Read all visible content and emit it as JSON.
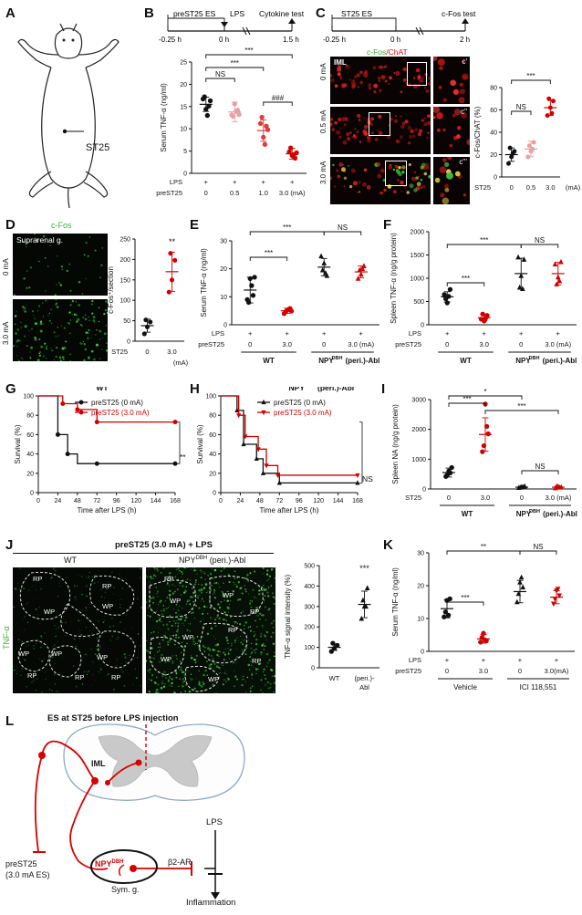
{
  "figure": {
    "panel_labels": [
      "A",
      "B",
      "C",
      "D",
      "E",
      "F",
      "G",
      "H",
      "I",
      "J",
      "K",
      "L"
    ],
    "A": {
      "site_label": "ST25"
    },
    "B": {
      "timeline": {
        "stim": "preST25 ES",
        "lps": "LPS",
        "end": "Cytokine test",
        "t0": "-0.25 h",
        "t1": "0 h",
        "t2": "1.5 h"
      },
      "ylabel": "Serum TNF-α (ng/ml)",
      "sig": [
        "NS",
        "***",
        "***",
        "###"
      ],
      "row_labels": [
        "LPS",
        "preST25"
      ],
      "lps": [
        "+",
        "+",
        "+",
        "+"
      ],
      "doses": [
        "0",
        "0.5",
        "1.0",
        "3.0 (mA)"
      ],
      "yticks": [
        "0",
        "5",
        "10",
        "15",
        "20",
        "25"
      ]
    },
    "C": {
      "timeline": {
        "stim": "ST25 ES",
        "end": "c-Fos test",
        "t0": "-0.25 h",
        "t1": "0 h",
        "t2": "2 h"
      },
      "stain_green": "c-Fos",
      "stain_red": "/ChAT",
      "iml": "IML",
      "rows": [
        "0 mA",
        "0.5 mA",
        "3.0 mA"
      ],
      "insets": [
        "c'",
        "c''",
        "c'''"
      ],
      "ylabel": "c-Fos/ChAT (%)",
      "sig": [
        "NS",
        "***"
      ],
      "xrow_label": "ST25",
      "x": [
        "0",
        "0.5",
        "3.0",
        "(mA)"
      ],
      "yticks": [
        "0",
        "20",
        "40",
        "60",
        "80"
      ]
    },
    "D": {
      "stain": "c-Fos",
      "region": "Suprarenal g.",
      "rows": [
        "0 mA",
        "3.0 mA"
      ],
      "ylabel": "c-Fos⁺/section",
      "sig": "**",
      "xrow_label": "ST25",
      "x": [
        "0",
        "3.0",
        "(mA)"
      ],
      "yticks": [
        "0",
        "50",
        "100",
        "150",
        "200",
        "250"
      ]
    },
    "E": {
      "ylabel": "Serum TNF-α (ng/ml)",
      "sig": [
        "***",
        "NS",
        "***"
      ],
      "row_labels": [
        "LPS",
        "preST25"
      ],
      "lps": [
        "+",
        "+",
        "+",
        "+"
      ],
      "doses": [
        "0",
        "3.0",
        "0",
        "3.0 (mA)"
      ],
      "groups": [
        "WT",
        "NPY",
        "DBH",
        " (peri.)-Abl"
      ],
      "yticks": [
        "0",
        "10",
        "20",
        "30"
      ]
    },
    "F": {
      "ylabel": "Spleen TNF-α (ng/g protein)",
      "sig": [
        "***",
        "NS",
        "***"
      ],
      "row_labels": [
        "LPS",
        "preST25"
      ],
      "lps": [
        "+",
        "+",
        "+",
        "+"
      ],
      "doses": [
        "0",
        "3.0",
        "0",
        "3.0 (mA)"
      ],
      "groups": [
        "WT",
        "NPY",
        "DBH",
        " (peri.)-Abl"
      ],
      "yticks": [
        "0",
        "500",
        "1000",
        "1500",
        "2000"
      ]
    },
    "G": {
      "title": "WT",
      "legend": [
        "preST25 (0 mA)",
        "preST25 (3.0 mA)"
      ],
      "sig": "**",
      "ylabel": "Survival (%)",
      "xlabel": "Time after LPS (h)",
      "xticks": [
        "0",
        "24",
        "48",
        "72",
        "96",
        "120",
        "144",
        "168"
      ],
      "yticks": [
        "0",
        "20",
        "40",
        "60",
        "80",
        "100"
      ]
    },
    "H": {
      "title_a": "NPY",
      "title_sup": "DBH",
      "title_b": " (peri.)-Abl",
      "legend": [
        "preST25 (0 mA)",
        "preST25 (3.0 mA)"
      ],
      "sig": "NS",
      "ylabel": "Survival (%)",
      "xlabel": "Time after LPS (h)",
      "xticks": [
        "0",
        "24",
        "48",
        "72",
        "96",
        "120",
        "144",
        "168"
      ],
      "yticks": [
        "0",
        "20",
        "40",
        "60",
        "80",
        "100"
      ]
    },
    "I": {
      "ylabel": "Spleen NA (ng/g protein)",
      "sig": [
        "*",
        "***",
        "***",
        "NS"
      ],
      "xrow_label": "ST25",
      "x": [
        "0",
        "3.0",
        "0",
        "3.0 (mA)"
      ],
      "groups": [
        "WT",
        "NPY",
        "DBH",
        " (peri.)-Abl"
      ],
      "yticks": [
        "0",
        "1000",
        "2000",
        "3000"
      ]
    },
    "J": {
      "header": "preST25 (3.0 mA) + LPS",
      "col_wt": "WT",
      "col_abl_a": "NPY",
      "col_abl_sup": "DBH",
      "col_abl_b": " (peri.)-Abl",
      "side": "TNF-α",
      "regions": [
        "RP",
        "WP"
      ],
      "ylabel": "TNF-α signal intensity (%)",
      "sig": "***",
      "x": [
        "WT",
        "(peri.)-",
        "Abl"
      ],
      "yticks": [
        "0",
        "100",
        "200",
        "300",
        "400",
        "500"
      ]
    },
    "K": {
      "ylabel": "Serum TNF-α (ng/ml)",
      "sig": [
        "***",
        "**",
        "NS"
      ],
      "row_labels": [
        "LPS",
        "preST25"
      ],
      "lps": [
        "+",
        "+",
        "+",
        "+"
      ],
      "doses": [
        "0",
        "3.0",
        "0",
        "3.0(mA)"
      ],
      "groups": [
        "Vehicle",
        "ICI 118,551"
      ],
      "yticks": [
        "0",
        "10",
        "20",
        "30"
      ]
    },
    "L": {
      "top": "ES at ST25 before LPS injection",
      "iml": "IML",
      "pre_a": "preST25",
      "pre_b": "(3.0 mA ES)",
      "npy": "NPY",
      "npy_sup": "DBH",
      "beta": "β2-AR",
      "symg": "Sym. g.",
      "lps": "LPS",
      "inflam": "Inflammation"
    }
  },
  "chart_data": [
    {
      "panel": "B",
      "type": "scatter",
      "ylabel": "Serum TNF-α (ng/ml)",
      "ylim": [
        0,
        25
      ],
      "categories": [
        "0",
        "0.5",
        "1.0",
        "3.0"
      ],
      "colors": [
        "#111111",
        "#e8a0a0",
        "#e03c3c",
        "#d10000"
      ],
      "means": [
        15.5,
        13.8,
        9.6,
        4.4
      ],
      "sd": [
        1.6,
        2.2,
        2.4,
        1.2
      ],
      "points": [
        [
          16.7,
          14.4,
          15.1,
          17.2,
          13.0,
          16.3
        ],
        [
          13.1,
          15.6,
          14.2,
          12.8,
          13.9,
          13.2
        ],
        [
          11.2,
          8.1,
          10.6,
          12.6,
          6.5,
          9.8
        ],
        [
          4.8,
          4.0,
          3.4,
          5.7,
          4.2,
          4.6
        ]
      ]
    },
    {
      "panel": "C",
      "type": "scatter",
      "ylabel": "c-Fos/ChAT (%)",
      "ylim": [
        0,
        80
      ],
      "categories": [
        "0",
        "0.5",
        "3.0"
      ],
      "colors": [
        "#111111",
        "#e8a0a0",
        "#d10000"
      ],
      "means": [
        20,
        25,
        62
      ],
      "sd": [
        6,
        7,
        7
      ],
      "points": [
        [
          12,
          18,
          23,
          26,
          21
        ],
        [
          18,
          23,
          31,
          28,
          25
        ],
        [
          55,
          62,
          68,
          70,
          57
        ]
      ]
    },
    {
      "panel": "D",
      "type": "scatter",
      "ylabel": "c-Fos⁺/section",
      "ylim": [
        0,
        250
      ],
      "categories": [
        "0",
        "3.0"
      ],
      "colors": [
        "#111111",
        "#d10000"
      ],
      "means": [
        38,
        170
      ],
      "sd": [
        16,
        48
      ],
      "points": [
        [
          18,
          35,
          47,
          52
        ],
        [
          120,
          150,
          198,
          215
        ]
      ]
    },
    {
      "panel": "E",
      "type": "scatter",
      "ylabel": "Serum TNF-α (ng/ml)",
      "ylim": [
        0,
        30
      ],
      "categories": [
        "WT 0",
        "WT 3.0",
        "Abl 0",
        "Abl 3.0"
      ],
      "colors": [
        "#111111",
        "#d10000",
        "#111111",
        "#d10000"
      ],
      "markers": [
        "circle",
        "circle",
        "triangle",
        "triangle"
      ],
      "means": [
        12.4,
        5.0,
        20.6,
        18.9
      ],
      "sd": [
        4.6,
        0.9,
        3.1,
        2.1
      ],
      "points": [
        [
          9,
          16.5,
          10.5,
          8,
          14,
          17
        ],
        [
          4.0,
          5.2,
          5.8,
          4.6,
          5.5,
          4.9
        ],
        [
          24.5,
          22,
          17.5,
          19.5,
          18.5
        ],
        [
          16.5,
          18,
          21,
          19.5,
          20
        ]
      ]
    },
    {
      "panel": "F",
      "type": "scatter",
      "ylabel": "Spleen TNF-α (ng/g protein)",
      "ylim": [
        0,
        2000
      ],
      "categories": [
        "WT 0",
        "WT 3.0",
        "Abl 0",
        "Abl 3.0"
      ],
      "colors": [
        "#111111",
        "#d10000",
        "#111111",
        "#d10000"
      ],
      "markers": [
        "circle",
        "circle",
        "triangle",
        "triangle"
      ],
      "means": [
        600,
        150,
        1100,
        1100
      ],
      "sd": [
        110,
        60,
        330,
        240
      ],
      "points": [
        [
          650,
          470,
          760,
          560,
          610
        ],
        [
          120,
          80,
          200,
          230,
          140
        ],
        [
          1450,
          1050,
          1400,
          800,
          770
        ],
        [
          1300,
          1020,
          1350,
          870,
          940
        ]
      ]
    },
    {
      "panel": "G",
      "type": "line",
      "xlabel": "Time after LPS (h)",
      "ylabel": "Survival (%)",
      "xlim": [
        0,
        168
      ],
      "ylim": [
        0,
        100
      ],
      "series": [
        {
          "name": "preST25 (0 mA)",
          "color": "#111111",
          "x": [
            0,
            24,
            24,
            36,
            36,
            48,
            48,
            72,
            72,
            168
          ],
          "y": [
            100,
            100,
            60,
            60,
            40,
            40,
            30,
            30,
            30,
            30
          ],
          "marks": [
            [
              24,
              60
            ],
            [
              36,
              40
            ],
            [
              72,
              30
            ],
            [
              168,
              30
            ]
          ]
        },
        {
          "name": "preST25 (3.0 mA)",
          "color": "#d10000",
          "x": [
            0,
            30,
            30,
            48,
            48,
            72,
            72,
            168
          ],
          "y": [
            100,
            100,
            92,
            92,
            86,
            86,
            73,
            73
          ],
          "marks": [
            [
              30,
              92
            ],
            [
              48,
              86
            ],
            [
              72,
              73
            ],
            [
              168,
              73
            ]
          ]
        }
      ]
    },
    {
      "panel": "H",
      "type": "line",
      "xlabel": "Time after LPS (h)",
      "ylabel": "Survival (%)",
      "xlim": [
        0,
        168
      ],
      "ylim": [
        0,
        100
      ],
      "series": [
        {
          "name": "preST25 (0 mA)",
          "color": "#111111",
          "x": [
            0,
            20,
            20,
            28,
            28,
            44,
            44,
            52,
            52,
            72,
            72,
            168
          ],
          "y": [
            100,
            100,
            85,
            85,
            50,
            50,
            35,
            35,
            20,
            20,
            10,
            10
          ],
          "marks": [
            [
              20,
              85
            ],
            [
              28,
              50
            ],
            [
              44,
              35
            ],
            [
              52,
              20
            ],
            [
              72,
              10
            ],
            [
              168,
              10
            ]
          ]
        },
        {
          "name": "preST25 (3.0 mA)",
          "color": "#d10000",
          "x": [
            0,
            22,
            22,
            30,
            30,
            46,
            46,
            56,
            56,
            70,
            70,
            168
          ],
          "y": [
            100,
            100,
            80,
            80,
            58,
            58,
            45,
            45,
            28,
            28,
            18,
            18
          ],
          "marks": [
            [
              22,
              80
            ],
            [
              30,
              58
            ],
            [
              46,
              45
            ],
            [
              56,
              28
            ],
            [
              70,
              18
            ],
            [
              168,
              18
            ]
          ]
        }
      ]
    },
    {
      "panel": "I",
      "type": "scatter",
      "ylabel": "Spleen NA (ng/g protein)",
      "ylim": [
        0,
        3000
      ],
      "categories": [
        "WT 0",
        "WT 3.0",
        "Abl 0",
        "Abl 3.0"
      ],
      "colors": [
        "#111111",
        "#d10000",
        "#111111",
        "#d10000"
      ],
      "markers": [
        "circle",
        "circle",
        "triangle",
        "triangle"
      ],
      "means": [
        550,
        1830,
        60,
        60
      ],
      "sd": [
        150,
        560,
        30,
        30
      ],
      "points": [
        [
          420,
          600,
          720,
          480,
          540
        ],
        [
          1250,
          2850,
          1850,
          1450,
          2100
        ],
        [
          40,
          70,
          90,
          50,
          60
        ],
        [
          30,
          80,
          60,
          90,
          50
        ]
      ]
    },
    {
      "panel": "J",
      "type": "scatter",
      "ylabel": "TNF-α signal intensity (%)",
      "ylim": [
        0,
        500
      ],
      "categories": [
        "WT",
        "(peri.)-Abl"
      ],
      "colors": [
        "#111111",
        "#111111"
      ],
      "markers": [
        "circle",
        "triangle"
      ],
      "means": [
        100,
        310
      ],
      "sd": [
        15,
        65
      ],
      "points": [
        [
          80,
          95,
          110,
          120
        ],
        [
          240,
          300,
          390,
          330,
          300
        ]
      ]
    },
    {
      "panel": "K",
      "type": "scatter",
      "ylabel": "Serum TNF-α (ng/ml)",
      "ylim": [
        0,
        30
      ],
      "categories": [
        "Vehicle 0",
        "Vehicle 3.0",
        "ICI 0",
        "ICI 3.0"
      ],
      "colors": [
        "#111111",
        "#d10000",
        "#111111",
        "#d10000"
      ],
      "markers": [
        "circle",
        "circle",
        "triangle",
        "triangle-down"
      ],
      "means": [
        13.0,
        3.8,
        18.2,
        16.5
      ],
      "sd": [
        2.8,
        1.3,
        3.4,
        2.0
      ],
      "points": [
        [
          10.5,
          15.5,
          16,
          12,
          11
        ],
        [
          2.8,
          5.5,
          3.2,
          4.2,
          3.5
        ],
        [
          15,
          21,
          19.5,
          17.5,
          22.5
        ],
        [
          14.5,
          18.5,
          17,
          16,
          19
        ]
      ]
    }
  ]
}
